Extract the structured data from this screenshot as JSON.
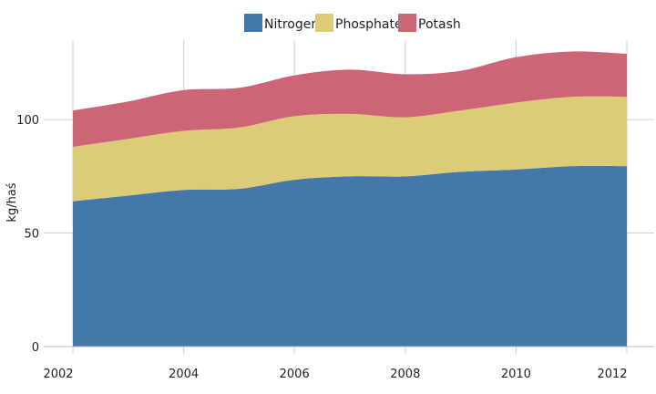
{
  "chart_data": {
    "type": "area",
    "stacked": true,
    "ylabel": "kg/haś",
    "xlabel": "",
    "x": [
      2002,
      2003,
      2004,
      2005,
      2006,
      2007,
      2008,
      2009,
      2010,
      2011,
      2012
    ],
    "series": [
      {
        "name": "Nitrogen",
        "color": "#4477aa",
        "values": [
          64,
          66.5,
          69,
          69.5,
          73.5,
          75,
          75,
          77,
          78,
          79.5,
          79.5
        ]
      },
      {
        "name": "Phosphate",
        "color": "#ddcc77",
        "values": [
          24,
          25,
          26,
          27,
          28,
          27.5,
          26,
          27,
          29.5,
          30.5,
          30.5
        ]
      },
      {
        "name": "Potash",
        "color": "#cc6677",
        "values": [
          16,
          16.5,
          18,
          17.5,
          18,
          19.5,
          19,
          17.5,
          20,
          20,
          19
        ]
      }
    ],
    "x_ticks": [
      "2002",
      "2004",
      "2006",
      "2008",
      "2010",
      "2012"
    ],
    "y_ticks": [
      "0",
      "50",
      "100"
    ],
    "xlim": [
      2002,
      2012
    ],
    "ylim": [
      0,
      135
    ],
    "grid": "vertical and horizontal",
    "legend_position": "top-center"
  }
}
